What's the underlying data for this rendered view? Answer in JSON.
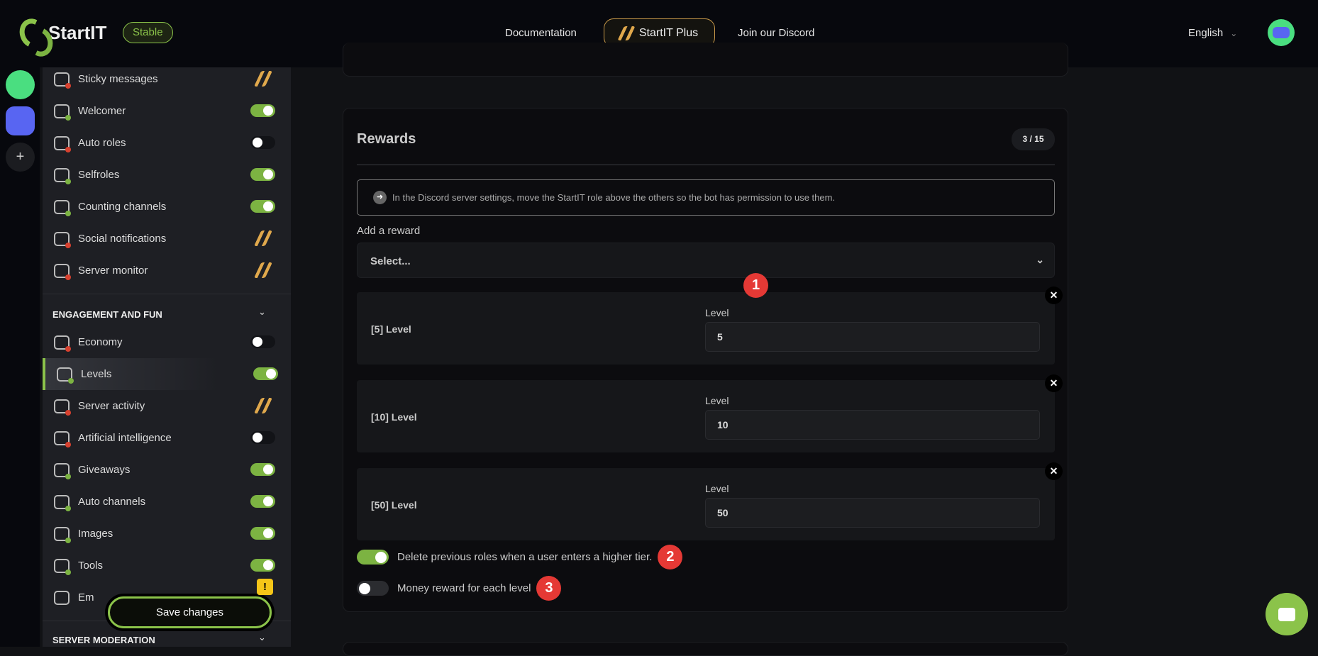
{
  "header": {
    "brand": "StartIT",
    "channel_badge": "Stable",
    "nav": [
      "Documentation",
      "StartIT Plus",
      "Join our Discord"
    ],
    "language": "English"
  },
  "sidebar": {
    "items_top": [
      {
        "label": "Sticky messages",
        "state": "premium",
        "status": "red"
      },
      {
        "label": "Welcomer",
        "state": "on",
        "status": "green"
      },
      {
        "label": "Auto roles",
        "state": "off",
        "status": "red"
      },
      {
        "label": "Selfroles",
        "state": "on",
        "status": "green"
      },
      {
        "label": "Counting channels",
        "state": "on",
        "status": "green"
      },
      {
        "label": "Social notifications",
        "state": "premium",
        "status": "red"
      },
      {
        "label": "Server monitor",
        "state": "premium",
        "status": "red"
      }
    ],
    "section_engagement": "ENGAGEMENT AND FUN",
    "items_engagement": [
      {
        "label": "Economy",
        "state": "off",
        "status": "red"
      },
      {
        "label": "Levels",
        "state": "on",
        "status": "green",
        "active": true
      },
      {
        "label": "Server activity",
        "state": "premium",
        "status": "red"
      },
      {
        "label": "Artificial intelligence",
        "state": "off",
        "status": "red"
      },
      {
        "label": "Giveaways",
        "state": "on",
        "status": "green"
      },
      {
        "label": "Auto channels",
        "state": "on",
        "status": "green"
      },
      {
        "label": "Images",
        "state": "on",
        "status": "green"
      },
      {
        "label": "Tools",
        "state": "on",
        "status": "green"
      },
      {
        "label": "Em",
        "state": "",
        "status": ""
      }
    ],
    "section_moderation": "SERVER MODERATION",
    "save_label": "Save changes",
    "warning": "!"
  },
  "rewards": {
    "title": "Rewards",
    "count": "3 / 15",
    "info": "In the Discord server settings, move the StartIT role above the others so the bot has permission to use them.",
    "add_label": "Add a reward",
    "select_placeholder": "Select...",
    "items": [
      {
        "name": "[5] Level",
        "level_label": "Level",
        "level": "5"
      },
      {
        "name": "[10] Level",
        "level_label": "Level",
        "level": "10"
      },
      {
        "name": "[50] Level",
        "level_label": "Level",
        "level": "50"
      }
    ],
    "delete_previous": {
      "label": "Delete previous roles when a user enters a higher tier.",
      "on": true
    },
    "money_reward": {
      "label": "Money reward for each level",
      "on": false
    }
  },
  "annotations": [
    "1",
    "2",
    "3"
  ],
  "colors": {
    "accent": "#8bc34a",
    "premium": "#e0a84c",
    "annotation": "#e53935"
  }
}
